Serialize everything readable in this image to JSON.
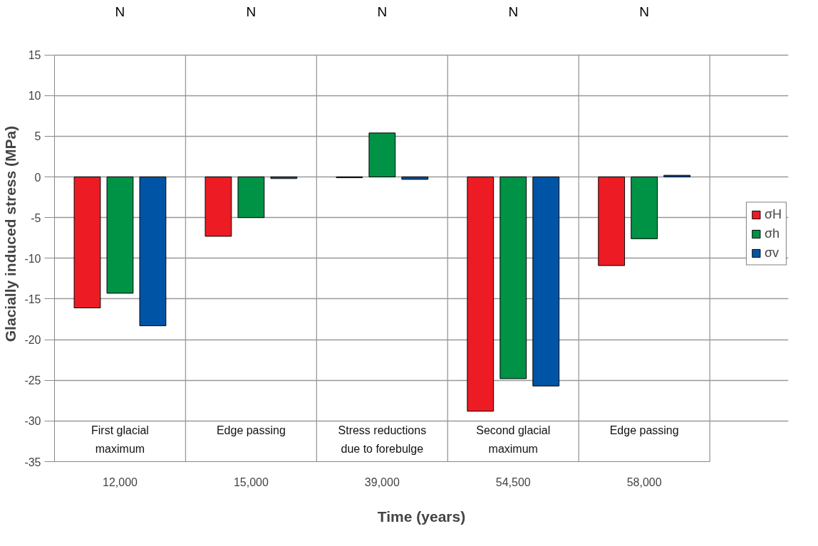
{
  "chart_data": {
    "type": "bar",
    "xlabel": "Time (years)",
    "ylabel": "Glacially induced stress (MPa)",
    "categories": [
      "12,000",
      "15,000",
      "39,000",
      "54,500",
      "58,000"
    ],
    "series": [
      {
        "name": "σH",
        "color": "#ed1c24",
        "values": [
          -16.1,
          -7.3,
          -0.1,
          -28.8,
          -10.9
        ]
      },
      {
        "name": "σh",
        "color": "#009245",
        "values": [
          -14.3,
          -5.0,
          5.4,
          -24.8,
          -7.6
        ]
      },
      {
        "name": "σv",
        "color": "#0054a6",
        "values": [
          -18.3,
          -0.2,
          -0.3,
          -25.7,
          0.2
        ]
      }
    ],
    "ylim": [
      -35,
      15
    ],
    "yticks": [
      -35,
      -30,
      -25,
      -20,
      -15,
      -10,
      -5,
      0,
      5,
      10,
      15
    ],
    "grid": true,
    "legend": "right",
    "annotations": [
      "N",
      "N",
      "N",
      "N",
      "N",
      "First glacial\nmaximum",
      "Edge passing",
      "Stress reductions\ndue to forebulge",
      "Second glacial\nmaximum",
      "Edge passing"
    ]
  }
}
